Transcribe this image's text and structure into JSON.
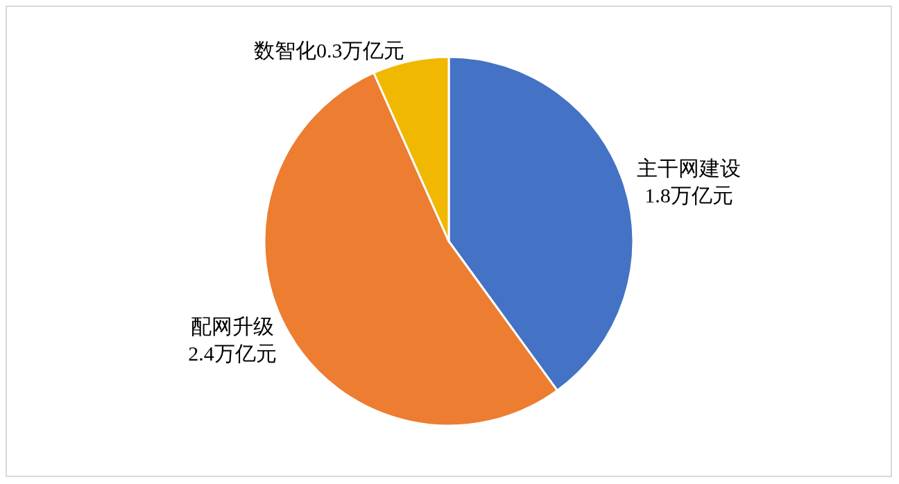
{
  "chart_data": {
    "type": "pie",
    "categories": [
      "主干网建设",
      "配网升级",
      "数智化"
    ],
    "values": [
      1.8,
      2.4,
      0.3
    ],
    "value_labels": [
      "1.8万亿元",
      "2.4万亿元",
      "0.3万亿元"
    ],
    "colors": [
      "#4472c4",
      "#ed7d31",
      "#f0b800"
    ],
    "legend": false
  }
}
